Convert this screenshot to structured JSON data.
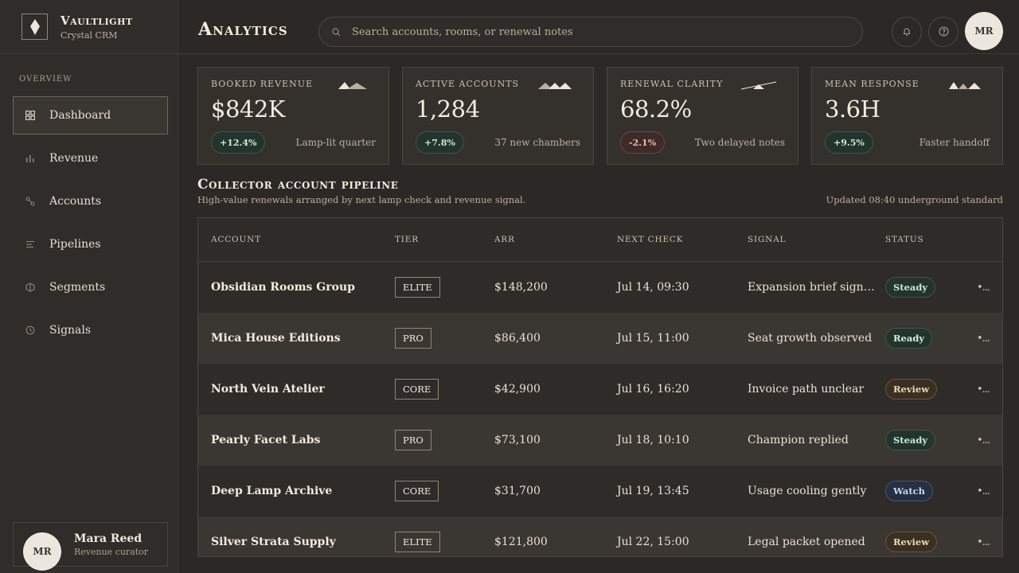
{
  "brand": {
    "title": "Vaultlight",
    "subtitle": "Crystal CRM"
  },
  "sidebar": {
    "section_label": "Overview",
    "items": [
      {
        "label": "Dashboard",
        "icon": "grid-icon",
        "active": true
      },
      {
        "label": "Revenue",
        "icon": "bar-chart-icon",
        "active": false
      },
      {
        "label": "Accounts",
        "icon": "link-icon",
        "active": false
      },
      {
        "label": "Pipelines",
        "icon": "lines-icon",
        "active": false
      },
      {
        "label": "Segments",
        "icon": "segment-icon",
        "active": false
      },
      {
        "label": "Signals",
        "icon": "clock-icon",
        "active": false
      }
    ],
    "user": {
      "initials": "MR",
      "name": "Mara Reed",
      "role": "Revenue curator"
    }
  },
  "header": {
    "title": "Analytics",
    "search_placeholder": "Search accounts, rooms, or renewal notes",
    "avatar_initials": "MR"
  },
  "kpis": [
    {
      "label": "Booked revenue",
      "value": "$842K",
      "delta": "+12.4%",
      "delta_type": "pos",
      "note": "Lamp-lit quarter"
    },
    {
      "label": "Active accounts",
      "value": "1,284",
      "delta": "+7.8%",
      "delta_type": "pos",
      "note": "37 new chambers"
    },
    {
      "label": "Renewal clarity",
      "value": "68.2%",
      "delta": "-2.1%",
      "delta_type": "neg",
      "note": "Two delayed notes"
    },
    {
      "label": "Mean response",
      "value": "3.6H",
      "delta": "+9.5%",
      "delta_type": "pos",
      "note": "Faster handoff"
    }
  ],
  "pipeline": {
    "title": "Collector account pipeline",
    "subtitle": "High-value renewals arranged by next lamp check and revenue signal.",
    "updated": "Updated 08:40 underground standard",
    "columns": [
      "Account",
      "Tier",
      "ARR",
      "Next check",
      "Signal",
      "Status"
    ],
    "rows": [
      {
        "account": "Obsidian Rooms Group",
        "tier": "ELITE",
        "arr": "$148,200",
        "next": "Jul 14, 09:30",
        "signal": "Expansion brief sign…",
        "status": "Steady"
      },
      {
        "account": "Mica House Editions",
        "tier": "PRO",
        "arr": "$86,400",
        "next": "Jul 15, 11:00",
        "signal": "Seat growth observed",
        "status": "Ready"
      },
      {
        "account": "North Vein Atelier",
        "tier": "CORE",
        "arr": "$42,900",
        "next": "Jul 16, 16:20",
        "signal": "Invoice path unclear",
        "status": "Review"
      },
      {
        "account": "Pearly Facet Labs",
        "tier": "PRO",
        "arr": "$73,100",
        "next": "Jul 18, 10:10",
        "signal": "Champion replied",
        "status": "Steady"
      },
      {
        "account": "Deep Lamp Archive",
        "tier": "CORE",
        "arr": "$31,700",
        "next": "Jul 19, 13:45",
        "signal": "Usage cooling gently",
        "status": "Watch"
      },
      {
        "account": "Silver Strata Supply",
        "tier": "ELITE",
        "arr": "$121,800",
        "next": "Jul 22, 15:00",
        "signal": "Legal packet opened",
        "status": "Review"
      }
    ],
    "row_menu": "•..."
  },
  "status_colors": {
    "Steady": {
      "bg": "#22342c",
      "border": "#3b5a4a",
      "fg": "#cfe6d8"
    },
    "Ready": {
      "bg": "#22342c",
      "border": "#3b5a4a",
      "fg": "#d6ecdf"
    },
    "Review": {
      "bg": "#3a3022",
      "border": "#6b5638",
      "fg": "#ead8b4"
    },
    "Watch": {
      "bg": "#253042",
      "border": "#44577a",
      "fg": "#c8d6ee"
    }
  }
}
